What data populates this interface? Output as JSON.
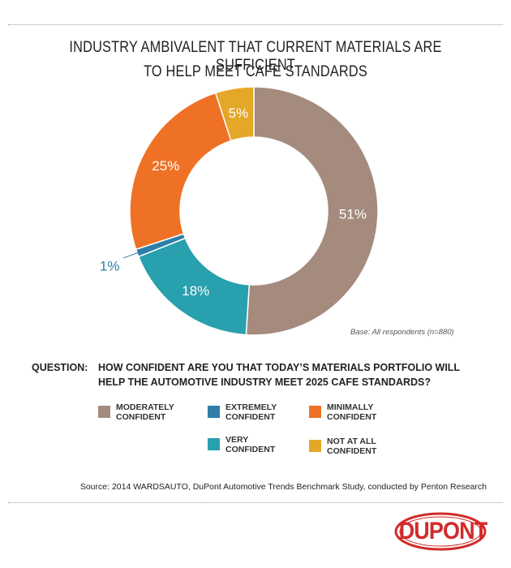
{
  "title_lines": [
    "INDUSTRY AMBIVALENT THAT CURRENT MATERIALS ARE SUFFICIENT",
    "TO HELP MEET CAFE STANDARDS"
  ],
  "base_note": "Base: All respondents (n=880)",
  "question": {
    "label": "QUESTION:",
    "line1": "HOW CONFIDENT ARE YOU THAT TODAY’S MATERIALS PORTFOLIO WILL",
    "line2": "HELP THE AUTOMOTIVE INDUSTRY MEET 2025 CAFE STANDARDS?"
  },
  "legend": [
    {
      "label_line1": "MODERATELY",
      "label_line2": "CONFIDENT",
      "color": "#a48b7d"
    },
    {
      "label_line1": "EXTREMELY",
      "label_line2": "CONFIDENT",
      "color": "#2e7ea8"
    },
    {
      "label_line1": "MINIMALLY",
      "label_line2": "CONFIDENT",
      "color": "#ef7125"
    },
    {
      "label_line1": "VERY",
      "label_line2": "CONFIDENT",
      "color": "#28a0ae"
    },
    {
      "label_line1": "NOT AT ALL",
      "label_line2": "CONFIDENT",
      "color": "#e5a728"
    }
  ],
  "source": "Source: 2014 WARDSAUTO, DuPont Automotive Trends Benchmark Study, conducted by Penton Research",
  "logo_text": "DUPONT",
  "chart_data": {
    "type": "pie",
    "style": "donut",
    "title": "INDUSTRY AMBIVALENT THAT CURRENT MATERIALS ARE SUFFICIENT TO HELP MEET CAFE STANDARDS",
    "categories": [
      "MODERATELY CONFIDENT",
      "VERY CONFIDENT",
      "EXTREMELY CONFIDENT",
      "MINIMALLY CONFIDENT",
      "NOT AT ALL CONFIDENT"
    ],
    "values": [
      51,
      18,
      1,
      25,
      5
    ],
    "labels": [
      "51%",
      "18%",
      "1%",
      "25%",
      "5%"
    ],
    "colors": [
      "#a48b7d",
      "#28a0ae",
      "#2e7ea8",
      "#ef7125",
      "#e5a728"
    ],
    "label_color": "#ffffff",
    "legend_position": "bottom"
  }
}
